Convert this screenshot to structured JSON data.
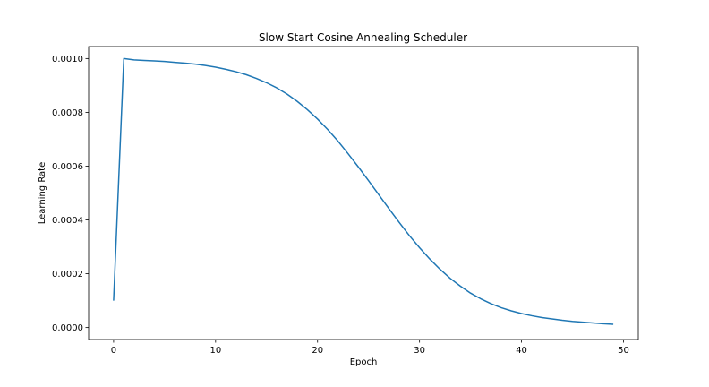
{
  "chart_data": {
    "type": "line",
    "title": "Slow Start Cosine Annealing Scheduler",
    "xlabel": "Epoch",
    "ylabel": "Learning Rate",
    "xlim": [
      -2.45,
      51.45
    ],
    "ylim": [
      -4.45e-05,
      0.0010445
    ],
    "x_ticks": [
      0,
      10,
      20,
      30,
      40,
      50
    ],
    "x_tick_labels": [
      "0",
      "10",
      "20",
      "30",
      "40",
      "50"
    ],
    "y_ticks": [
      0.0,
      0.0002,
      0.0004,
      0.0006,
      0.0008,
      0.001
    ],
    "y_tick_labels": [
      "0.0000",
      "0.0002",
      "0.0004",
      "0.0006",
      "0.0008",
      "0.0010"
    ],
    "grid": false,
    "legend": "none",
    "series": [
      {
        "color": "#1f77b4",
        "x": [
          0,
          1,
          2,
          3,
          4,
          5,
          6,
          7,
          8,
          9,
          10,
          11,
          12,
          13,
          14,
          15,
          16,
          17,
          18,
          19,
          20,
          21,
          22,
          23,
          24,
          25,
          26,
          27,
          28,
          29,
          30,
          31,
          32,
          33,
          34,
          35,
          36,
          37,
          38,
          39,
          40,
          41,
          42,
          43,
          44,
          45,
          46,
          47,
          48,
          49
        ],
        "values": [
          0.0001,
          0.001,
          0.000995,
          0.000993,
          0.000991,
          0.000989,
          0.000986,
          0.000983,
          0.000979,
          0.000974,
          0.000968,
          0.00096,
          0.000951,
          0.00094,
          0.000926,
          0.00091,
          0.000891,
          0.000868,
          0.000841,
          0.00081,
          0.000775,
          0.000736,
          0.000693,
          0.000646,
          0.000597,
          0.000546,
          0.000494,
          0.000442,
          0.000391,
          0.000342,
          0.000297,
          0.000255,
          0.000217,
          0.000183,
          0.000154,
          0.000128,
          0.000107,
          8.9e-05,
          7.4e-05,
          6.2e-05,
          5.2e-05,
          4.4e-05,
          3.7e-05,
          3.2e-05,
          2.7e-05,
          2.3e-05,
          2e-05,
          1.7e-05,
          1.4e-05,
          1.2e-05
        ]
      }
    ]
  }
}
